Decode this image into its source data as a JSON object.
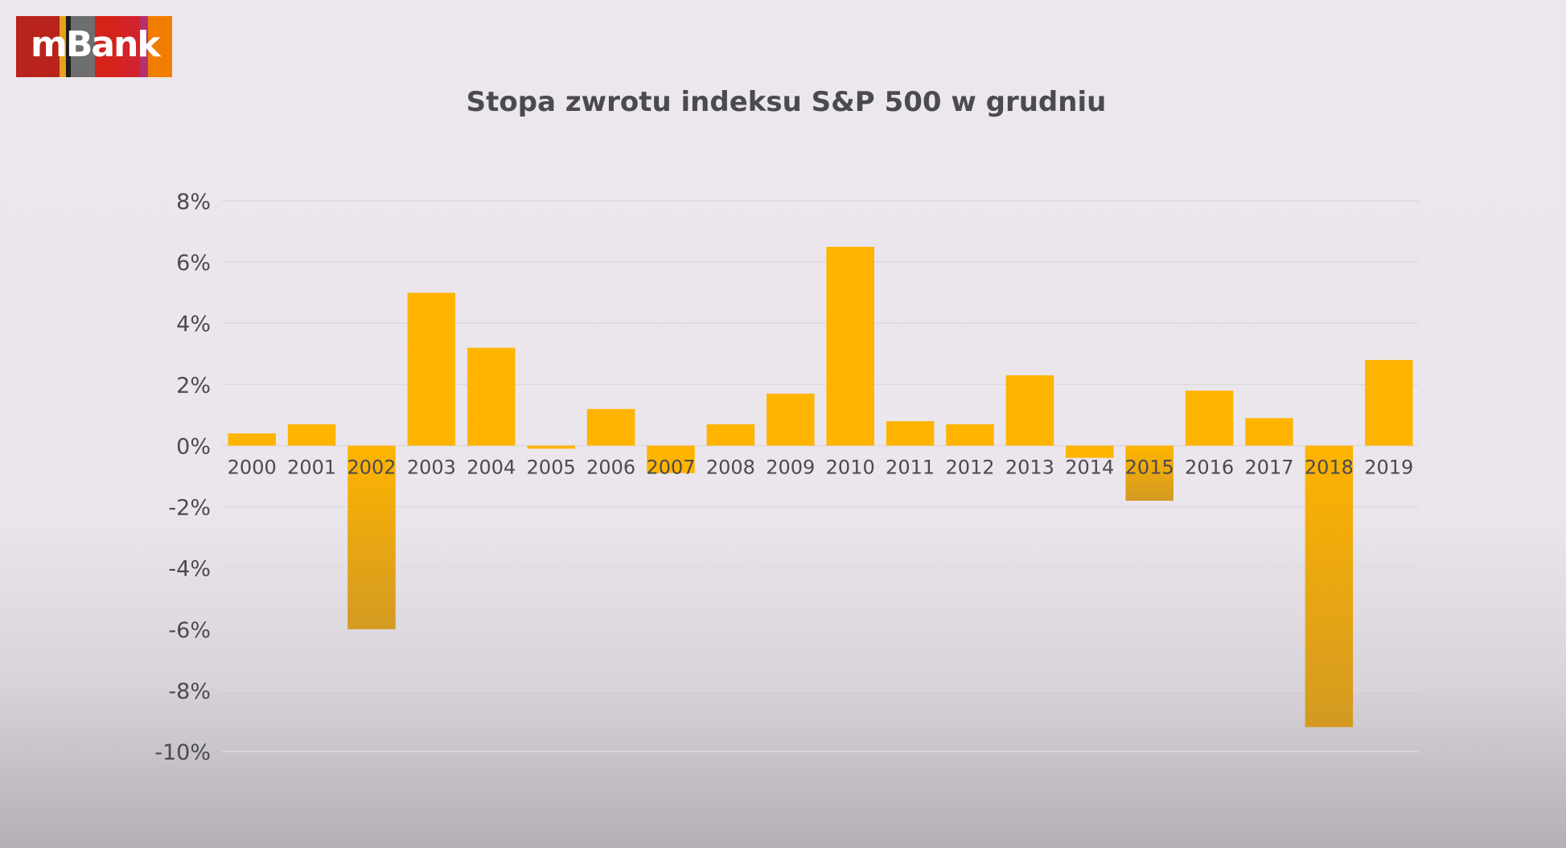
{
  "logo": {
    "text": "mBank",
    "colors": [
      "#b8231c",
      "#e8a01e",
      "#1d1d1b",
      "#6e6e6e",
      "#d6231a",
      "#d2232a",
      "#b5306e",
      "#f07d00"
    ]
  },
  "colors": {
    "bar": "#ffb400",
    "bar_dark": "#d89a1a",
    "grid": "#dcd8dc",
    "text": "#4a4a4f"
  },
  "chart_data": {
    "type": "bar",
    "title": "Stopa zwrotu indeksu S&P 500 w grudniu",
    "xlabel": "",
    "ylabel": "",
    "ylim": [
      -10,
      8
    ],
    "yticks": [
      8,
      6,
      4,
      2,
      0,
      -2,
      -4,
      -6,
      -8,
      -10
    ],
    "ytick_labels": [
      "8%",
      "6%",
      "4%",
      "2%",
      "0%",
      "-2%",
      "-4%",
      "-6%",
      "-8%",
      "-10%"
    ],
    "grid": true,
    "legend": false,
    "categories": [
      "2000",
      "2001",
      "2002",
      "2003",
      "2004",
      "2005",
      "2006",
      "2007",
      "2008",
      "2009",
      "2010",
      "2011",
      "2012",
      "2013",
      "2014",
      "2015",
      "2016",
      "2017",
      "2018",
      "2019"
    ],
    "values": [
      0.4,
      0.7,
      -6.0,
      5.0,
      3.2,
      -0.1,
      1.2,
      -0.9,
      0.7,
      1.7,
      6.5,
      0.8,
      0.7,
      2.3,
      -0.4,
      -1.8,
      1.8,
      0.9,
      -9.2,
      2.8
    ],
    "unit": "%"
  }
}
